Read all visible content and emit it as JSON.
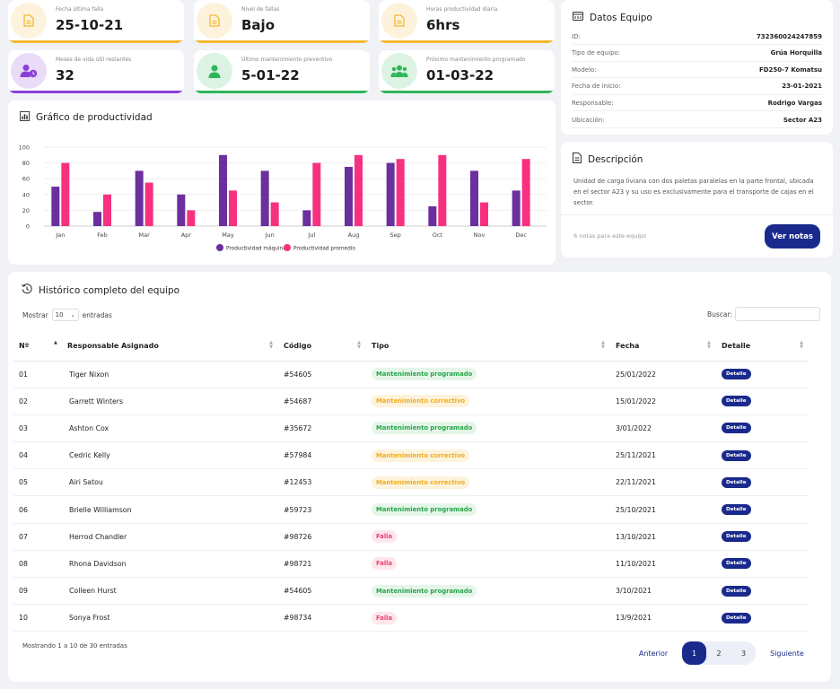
{
  "stats": [
    {
      "label": "Fecha última falla",
      "value": "25-10-21",
      "icon": "document-icon",
      "color": "#f5b82e",
      "bg": "#fdf3dc"
    },
    {
      "label": "Nivel de fallas",
      "value": "Bajo",
      "icon": "document-icon",
      "color": "#f5b82e",
      "bg": "#fdf3dc"
    },
    {
      "label": "Horas productividad diaria",
      "value": "6hrs",
      "icon": "document-icon",
      "color": "#f5b82e",
      "bg": "#fdf3dc"
    },
    {
      "label": "Meses de vida útil restantes",
      "value": "32",
      "icon": "user-clock-icon",
      "color": "#8b3fd9",
      "bg": "#eadcf8"
    },
    {
      "label": "Último mantenimiento preventivo",
      "value": "5-01-22",
      "icon": "user-icon",
      "color": "#2fb65a",
      "bg": "#dcf3e3"
    },
    {
      "label": "Próximo mantenimiento programado",
      "value": "01-03-22",
      "icon": "users-icon",
      "color": "#2fb65a",
      "bg": "#dcf3e3"
    }
  ],
  "chart_title": "Gráfico de productividad",
  "chart_data": {
    "type": "bar",
    "categories": [
      "Jan",
      "Feb",
      "Mar",
      "Apr",
      "May",
      "Jun",
      "Jul",
      "Aug",
      "Sep",
      "Oct",
      "Nov",
      "Dec"
    ],
    "series": [
      {
        "name": "Productividad máquina",
        "color": "#6b2f9e",
        "values": [
          50,
          18,
          70,
          40,
          90,
          70,
          20,
          75,
          80,
          25,
          70,
          45
        ]
      },
      {
        "name": "Productividad promedio",
        "color": "#f7317f",
        "values": [
          80,
          40,
          55,
          20,
          45,
          30,
          80,
          90,
          85,
          90,
          30,
          85
        ]
      }
    ],
    "yticks": [
      0,
      20,
      40,
      60,
      80,
      100
    ],
    "ylim": [
      0,
      100
    ]
  },
  "equipo": {
    "title": "Datos Equipo",
    "rows": [
      {
        "k": "ID:",
        "v": "732360024247859"
      },
      {
        "k": "Tipo de equipo:",
        "v": "Grúa Horquilla"
      },
      {
        "k": "Modelo:",
        "v": "FD250-7 Komatsu"
      },
      {
        "k": "Fecha de inicio:",
        "v": "23-01-2021"
      },
      {
        "k": "Responsable:",
        "v": "Rodrigo Vargas"
      },
      {
        "k": "Ubicación:",
        "v": "Sector A23"
      }
    ]
  },
  "descripcion": {
    "title": "Descripción",
    "text": "Unidad de carga liviana con dos paletas paralelas en la parte frontal, ubicada en el sector A23 y su uso es exclusivamente para el transporte de cajas en el sector.",
    "notes": "6 notas para este equipo",
    "button": "Ver notas"
  },
  "historico": {
    "title": "Histórico completo del equipo",
    "show_label": "Mostrar",
    "show_value": "10",
    "entries_label": "entradas",
    "search_label": "Buscar:",
    "columns": [
      "Nº",
      "Responsable Asignado",
      "Código",
      "Tipo",
      "Fecha",
      "Detalle"
    ],
    "rows": [
      {
        "n": "01",
        "name": "Tiger Nixon",
        "code": "#54605",
        "type": "Mantenimiento programado",
        "kind": "prog",
        "date": "25/01/2022"
      },
      {
        "n": "02",
        "name": "Garrett Winters",
        "code": "#54687",
        "type": "Mantenimiento correctivo",
        "kind": "corr",
        "date": "15/01/2022"
      },
      {
        "n": "03",
        "name": "Ashton Cox",
        "code": "#35672",
        "type": "Mantenimiento programado",
        "kind": "prog",
        "date": "3/01/2022"
      },
      {
        "n": "04",
        "name": "Cedric Kelly",
        "code": "#57984",
        "type": "Mantenimiento correctivo",
        "kind": "corr",
        "date": "25/11/2021"
      },
      {
        "n": "05",
        "name": "Airi Satou",
        "code": "#12453",
        "type": "Mantenimiento correctivo",
        "kind": "corr",
        "date": "22/11/2021"
      },
      {
        "n": "06",
        "name": "Brielle Williamson",
        "code": "#59723",
        "type": "Mantenimiento programado",
        "kind": "prog",
        "date": "25/10/2021"
      },
      {
        "n": "07",
        "name": "Herrod Chandler",
        "code": "#98726",
        "type": "Falla",
        "kind": "falla",
        "date": "13/10/2021"
      },
      {
        "n": "08",
        "name": "Rhona Davidson",
        "code": "#98721",
        "type": "Falla",
        "kind": "falla",
        "date": "11/10/2021"
      },
      {
        "n": "09",
        "name": "Colleen Hurst",
        "code": "#54605",
        "type": "Mantenimiento programado",
        "kind": "prog",
        "date": "3/10/2021"
      },
      {
        "n": "10",
        "name": "Sonya Frost",
        "code": "#98734",
        "type": "Falla",
        "kind": "falla",
        "date": "13/9/2021"
      }
    ],
    "detail_label": "Detalle",
    "info": "Mostrando 1 a 10 de 30 entradas",
    "prev": "Anterior",
    "next": "Siguiente",
    "pages": [
      "1",
      "2",
      "3"
    ]
  }
}
